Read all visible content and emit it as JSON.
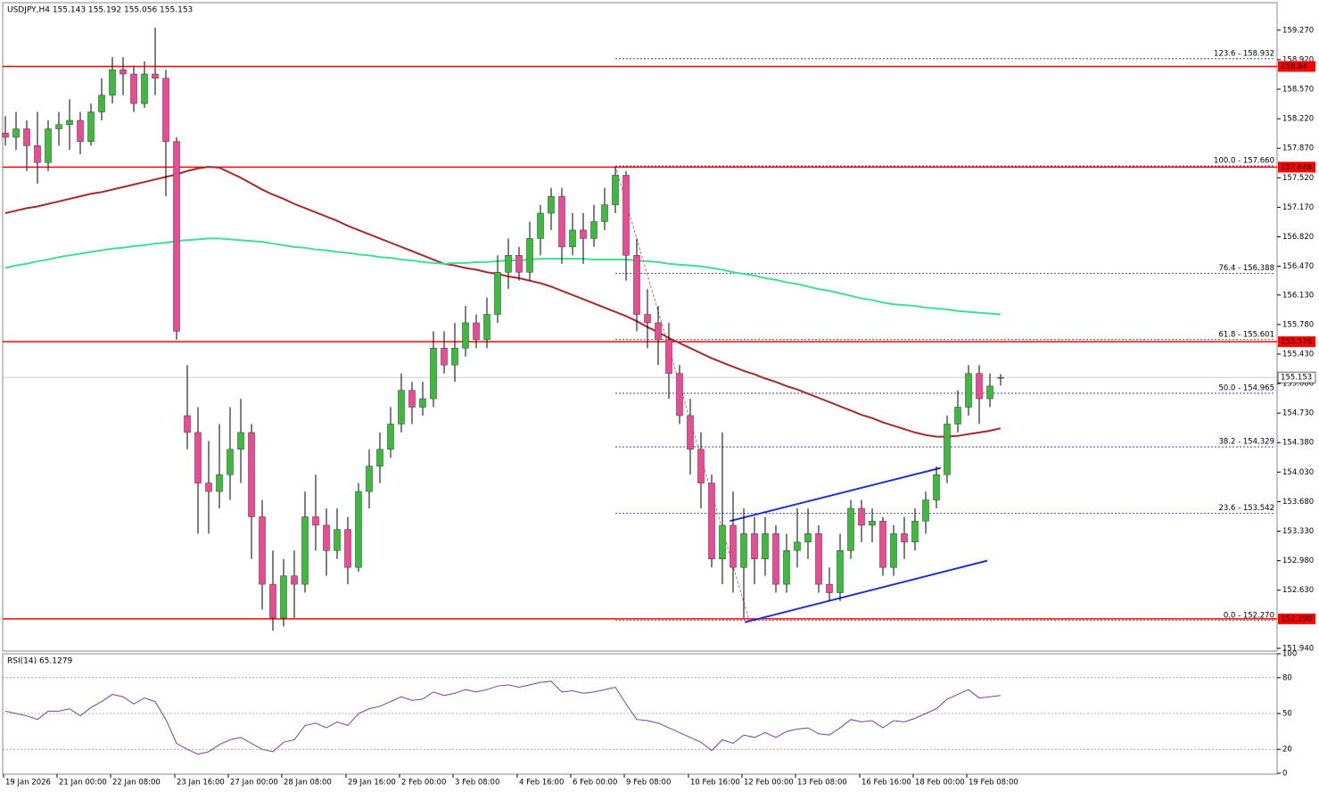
{
  "chart_data": {
    "type": "candlestick",
    "title": "USDJPY,H4  155.143 155.192 155.056 155.153",
    "categories": [
      "19 Jan 2026",
      null,
      null,
      null,
      null,
      "21 Jan 00:00",
      null,
      null,
      null,
      null,
      "22 Jan 08:00",
      null,
      null,
      null,
      null,
      null,
      "23 Jan 16:00",
      null,
      null,
      null,
      null,
      "27 Jan 00:00",
      null,
      null,
      null,
      null,
      "28 Jan 08:00",
      null,
      null,
      null,
      null,
      null,
      "29 Jan 16:00",
      null,
      null,
      null,
      null,
      "2 Feb 00:00",
      null,
      null,
      null,
      null,
      "3 Feb 08:00",
      null,
      null,
      null,
      null,
      null,
      "4 Feb 16:00",
      null,
      null,
      null,
      null,
      "6 Feb 00:00",
      null,
      null,
      null,
      null,
      "9 Feb 08:00",
      null,
      null,
      null,
      null,
      null,
      "10 Feb 16:00",
      null,
      null,
      null,
      null,
      "12 Feb 00:00",
      null,
      null,
      null,
      null,
      "13 Feb 08:00",
      null,
      null,
      null,
      null,
      null,
      "16 Feb 16:00",
      null,
      null,
      null,
      null,
      "18 Feb 00:00",
      null,
      null,
      null,
      null,
      "19 Feb 08:00",
      null,
      null,
      null
    ],
    "candles": [
      [
        158.05,
        158.25,
        157.9,
        158.0
      ],
      [
        158.0,
        158.3,
        157.85,
        158.1
      ],
      [
        158.1,
        158.2,
        157.6,
        157.9
      ],
      [
        157.9,
        158.3,
        157.45,
        157.7
      ],
      [
        157.7,
        158.2,
        157.6,
        158.1
      ],
      [
        158.1,
        158.3,
        157.9,
        158.15
      ],
      [
        158.15,
        158.45,
        157.85,
        158.2
      ],
      [
        158.2,
        158.3,
        157.8,
        157.95
      ],
      [
        157.95,
        158.4,
        157.9,
        158.3
      ],
      [
        158.3,
        158.7,
        158.2,
        158.5
      ],
      [
        158.5,
        158.95,
        158.4,
        158.8
      ],
      [
        158.8,
        158.95,
        158.5,
        158.75
      ],
      [
        158.75,
        158.85,
        158.3,
        158.4
      ],
      [
        158.4,
        158.9,
        158.35,
        158.75
      ],
      [
        158.75,
        159.3,
        158.5,
        158.7
      ],
      [
        158.7,
        158.8,
        157.3,
        157.95
      ],
      [
        157.95,
        158.0,
        155.6,
        155.7
      ],
      [
        154.7,
        155.3,
        154.3,
        154.5
      ],
      [
        154.5,
        154.8,
        153.3,
        153.9
      ],
      [
        153.9,
        154.4,
        153.3,
        153.8
      ],
      [
        153.8,
        154.6,
        153.6,
        154.0
      ],
      [
        154.0,
        154.8,
        153.7,
        154.3
      ],
      [
        154.3,
        154.9,
        153.9,
        154.5
      ],
      [
        154.5,
        154.6,
        153.0,
        153.5
      ],
      [
        153.5,
        153.7,
        152.4,
        152.7
      ],
      [
        152.7,
        153.1,
        152.15,
        152.3
      ],
      [
        152.3,
        153.0,
        152.2,
        152.8
      ],
      [
        152.8,
        153.1,
        152.3,
        152.7
      ],
      [
        152.7,
        153.8,
        152.6,
        153.5
      ],
      [
        153.5,
        154.0,
        153.1,
        153.4
      ],
      [
        153.4,
        153.6,
        152.8,
        153.1
      ],
      [
        153.1,
        153.6,
        153.0,
        153.35
      ],
      [
        153.35,
        153.5,
        152.7,
        152.9
      ],
      [
        152.9,
        153.9,
        152.85,
        153.8
      ],
      [
        153.8,
        154.3,
        153.6,
        154.1
      ],
      [
        154.1,
        154.5,
        153.9,
        154.3
      ],
      [
        154.3,
        154.8,
        154.2,
        154.6
      ],
      [
        154.6,
        155.2,
        154.5,
        155.0
      ],
      [
        155.0,
        155.1,
        154.6,
        154.8
      ],
      [
        154.8,
        155.1,
        154.7,
        154.9
      ],
      [
        154.9,
        155.7,
        154.8,
        155.5
      ],
      [
        155.5,
        155.7,
        155.2,
        155.3
      ],
      [
        155.3,
        155.8,
        155.1,
        155.5
      ],
      [
        155.5,
        156.0,
        155.4,
        155.8
      ],
      [
        155.8,
        155.9,
        155.5,
        155.6
      ],
      [
        155.6,
        156.1,
        155.5,
        155.9
      ],
      [
        155.9,
        156.6,
        155.8,
        156.4
      ],
      [
        156.4,
        156.8,
        156.2,
        156.6
      ],
      [
        156.6,
        156.7,
        156.3,
        156.4
      ],
      [
        156.4,
        157.0,
        156.3,
        156.8
      ],
      [
        156.8,
        157.2,
        156.6,
        157.1
      ],
      [
        157.1,
        157.4,
        156.9,
        157.3
      ],
      [
        157.3,
        157.4,
        156.5,
        156.7
      ],
      [
        156.7,
        157.1,
        156.6,
        156.9
      ],
      [
        156.9,
        157.1,
        156.5,
        156.8
      ],
      [
        156.8,
        157.2,
        156.7,
        157.0
      ],
      [
        157.0,
        157.4,
        156.9,
        157.2
      ],
      [
        157.2,
        157.65,
        157.1,
        157.55
      ],
      [
        157.55,
        157.6,
        156.3,
        156.6
      ],
      [
        156.6,
        156.8,
        155.7,
        155.9
      ],
      [
        155.9,
        156.2,
        155.5,
        155.8
      ],
      [
        155.8,
        156.0,
        155.3,
        155.6
      ],
      [
        155.6,
        155.8,
        154.9,
        155.2
      ],
      [
        155.2,
        155.3,
        154.6,
        154.7
      ],
      [
        154.7,
        154.9,
        154.0,
        154.3
      ],
      [
        154.3,
        154.5,
        153.6,
        153.9
      ],
      [
        153.9,
        154.0,
        152.9,
        153.0
      ],
      [
        153.0,
        154.5,
        152.7,
        153.4
      ],
      [
        153.4,
        153.8,
        152.6,
        152.9
      ],
      [
        152.9,
        153.6,
        152.3,
        153.3
      ],
      [
        153.3,
        153.5,
        152.7,
        153.0
      ],
      [
        153.0,
        153.5,
        152.8,
        153.3
      ],
      [
        153.3,
        153.4,
        152.6,
        152.7
      ],
      [
        152.7,
        153.3,
        152.6,
        153.1
      ],
      [
        153.1,
        153.6,
        152.9,
        153.2
      ],
      [
        153.2,
        153.6,
        153.0,
        153.3
      ],
      [
        153.3,
        153.4,
        152.6,
        152.7
      ],
      [
        152.7,
        152.9,
        152.5,
        152.6
      ],
      [
        152.6,
        153.3,
        152.5,
        153.1
      ],
      [
        153.1,
        153.7,
        153.0,
        153.6
      ],
      [
        153.6,
        153.7,
        153.2,
        153.4
      ],
      [
        153.4,
        153.6,
        153.2,
        153.45
      ],
      [
        153.45,
        153.5,
        152.8,
        152.9
      ],
      [
        152.9,
        153.4,
        152.8,
        153.3
      ],
      [
        153.3,
        153.5,
        153.0,
        153.2
      ],
      [
        153.2,
        153.6,
        153.1,
        153.45
      ],
      [
        153.45,
        153.8,
        153.3,
        153.7
      ],
      [
        153.7,
        154.1,
        153.6,
        154.0
      ],
      [
        154.0,
        154.7,
        153.9,
        154.6
      ],
      [
        154.6,
        155.0,
        154.5,
        154.8
      ],
      [
        154.8,
        155.3,
        154.7,
        155.2
      ],
      [
        155.2,
        155.3,
        154.6,
        154.9
      ],
      [
        154.9,
        155.2,
        154.8,
        155.05
      ],
      [
        155.143,
        155.192,
        155.056,
        155.153
      ]
    ],
    "up_color": "#3dbb3d",
    "down_color": "#ec4a93",
    "ylim": [
      151.908,
      159.596
    ],
    "yticks": [
      {
        "value": 159.27,
        "label": "159.270"
      },
      {
        "value": 158.92,
        "label": "158.920"
      },
      {
        "value": 158.57,
        "label": "158.570"
      },
      {
        "value": 158.22,
        "label": "158.220"
      },
      {
        "value": 157.87,
        "label": "157.870"
      },
      {
        "value": 157.52,
        "label": "157.520"
      },
      {
        "value": 157.17,
        "label": "157.170"
      },
      {
        "value": 156.82,
        "label": "156.820"
      },
      {
        "value": 156.47,
        "label": "156.470"
      },
      {
        "value": 156.13,
        "label": "156.130"
      },
      {
        "value": 155.78,
        "label": "155.780"
      },
      {
        "value": 155.43,
        "label": "155.430"
      },
      {
        "value": 155.08,
        "label": "155.080"
      },
      {
        "value": 154.73,
        "label": "154.730"
      },
      {
        "value": 154.38,
        "label": "154.380"
      },
      {
        "value": 154.03,
        "label": "154.030"
      },
      {
        "value": 153.68,
        "label": "153.680"
      },
      {
        "value": 153.33,
        "label": "153.330"
      },
      {
        "value": 152.98,
        "label": "152.980"
      },
      {
        "value": 152.63,
        "label": "152.630"
      },
      {
        "value": 151.94,
        "label": "151.940"
      }
    ],
    "grid": false,
    "moving_averages": [
      {
        "color": "#a52a2a",
        "values": [
          157.1,
          157.13,
          157.16,
          157.18,
          157.21,
          157.24,
          157.27,
          157.3,
          157.33,
          157.35,
          157.38,
          157.41,
          157.44,
          157.47,
          157.5,
          157.53,
          157.56,
          157.6,
          157.63,
          157.65,
          157.64,
          157.58,
          157.52,
          157.45,
          157.38,
          157.32,
          157.27,
          157.21,
          157.16,
          157.11,
          157.06,
          157.01,
          156.95,
          156.9,
          156.85,
          156.8,
          156.75,
          156.7,
          156.65,
          156.6,
          156.55,
          156.5,
          156.48,
          156.45,
          156.43,
          156.4,
          156.38,
          156.35,
          156.33,
          156.3,
          156.27,
          156.23,
          156.18,
          156.13,
          156.08,
          156.03,
          155.98,
          155.93,
          155.88,
          155.82,
          155.75,
          155.69,
          155.62,
          155.56,
          155.5,
          155.44,
          155.38,
          155.33,
          155.28,
          155.23,
          155.19,
          155.14,
          155.1,
          155.05,
          155.01,
          154.96,
          154.91,
          154.86,
          154.81,
          154.76,
          154.71,
          154.67,
          154.62,
          154.58,
          154.54,
          154.5,
          154.47,
          154.45,
          154.45,
          154.46,
          154.48,
          154.5,
          154.52,
          154.55
        ]
      },
      {
        "color": "#3ee08f",
        "values": [
          156.45,
          156.48,
          156.5,
          156.53,
          156.55,
          156.58,
          156.6,
          156.62,
          156.64,
          156.66,
          156.68,
          156.69,
          156.71,
          156.72,
          156.74,
          156.75,
          156.77,
          156.78,
          156.79,
          156.8,
          156.8,
          156.79,
          156.78,
          156.77,
          156.76,
          156.74,
          156.72,
          156.7,
          156.69,
          156.67,
          156.66,
          156.64,
          156.63,
          156.61,
          156.6,
          156.58,
          156.57,
          156.55,
          156.54,
          156.52,
          156.51,
          156.5,
          156.51,
          156.51,
          156.52,
          156.52,
          156.53,
          156.54,
          156.54,
          156.55,
          156.56,
          156.56,
          156.56,
          156.56,
          156.56,
          156.55,
          156.55,
          156.55,
          156.55,
          156.54,
          156.53,
          156.52,
          156.5,
          156.49,
          156.48,
          156.47,
          156.45,
          156.43,
          156.4,
          156.38,
          156.36,
          156.33,
          156.31,
          156.28,
          156.26,
          156.23,
          156.2,
          156.18,
          156.15,
          156.12,
          156.09,
          156.07,
          156.04,
          156.02,
          156.01,
          156.0,
          155.98,
          155.97,
          155.96,
          155.94,
          155.93,
          155.92,
          155.91,
          155.9
        ]
      }
    ],
    "levels_color": "#ff0000",
    "levels": [
      158.84,
      157.646,
      155.576,
      {
        "value": 152.29,
        "label": "152.290"
      }
    ],
    "current_price": 155.153,
    "fib": {
      "x_start": 57,
      "color": "#1a2a9c",
      "levels": [
        {
          "value": 158.932,
          "label": "123.6 - 158.932"
        },
        {
          "value": 157.66,
          "label": "100.0 - 157.660"
        },
        {
          "value": 156.388,
          "label": "76.4 - 156.388"
        },
        {
          "value": 155.601,
          "label": "61.8 - 155.601"
        },
        {
          "value": 154.965,
          "label": "50.0 - 154.965"
        },
        {
          "value": 154.329,
          "label": "38.2 - 154.329"
        },
        {
          "value": 153.542,
          "label": "23.6 - 153.542"
        },
        {
          "value": 152.27,
          "label": "0.0 - 152.270"
        }
      ]
    },
    "trendlines": [
      {
        "x": [
          67.7,
          87.4
        ],
        "y": [
          153.45,
          154.08
        ],
        "color": "#1c2fd0",
        "style": "solid"
      },
      {
        "x": [
          69.1,
          91.75
        ],
        "y": [
          152.25,
          152.98
        ],
        "color": "#1c2fd0",
        "style": "solid"
      },
      {
        "x": [
          57,
          69.5
        ],
        "y": [
          157.66,
          152.27
        ],
        "color": "#d04040",
        "style": "dashed"
      }
    ],
    "rsi": {
      "title": "RSI(14) 65.1279",
      "color": "#7b3fa0",
      "values": [
        52,
        50,
        48,
        45,
        52,
        52,
        54,
        48,
        55,
        60,
        66,
        64,
        58,
        63,
        60,
        45,
        25,
        20,
        16,
        18,
        24,
        28,
        30,
        25,
        20,
        18,
        26,
        28,
        40,
        42,
        38,
        43,
        40,
        50,
        54,
        56,
        60,
        64,
        61,
        62,
        68,
        65,
        67,
        70,
        68,
        70,
        73,
        74,
        72,
        74,
        76,
        77,
        68,
        69,
        67,
        68,
        70,
        72,
        58,
        45,
        44,
        42,
        38,
        34,
        30,
        26,
        19,
        28,
        25,
        32,
        30,
        34,
        30,
        35,
        37,
        38,
        33,
        32,
        38,
        45,
        43,
        44,
        38,
        44,
        43,
        46,
        50,
        54,
        62,
        66,
        70,
        63,
        64,
        65.1279
      ],
      "ylim": [
        0,
        100
      ],
      "yticks": [
        100,
        80,
        50,
        20,
        0
      ],
      "levels": [
        80,
        50,
        20
      ]
    }
  }
}
